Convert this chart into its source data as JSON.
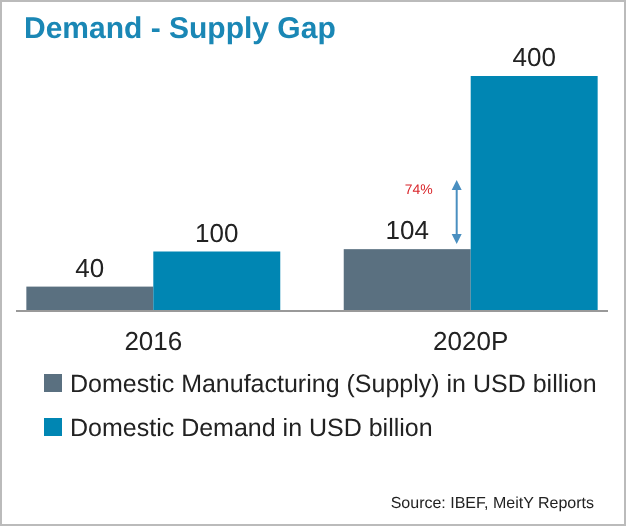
{
  "chart_data": {
    "type": "bar",
    "title": "Demand - Supply Gap",
    "categories": [
      "2016",
      "2020P"
    ],
    "series": [
      {
        "name": "Domestic Manufacturing (Supply) in USD billion",
        "color": "#5a7080",
        "values": [
          40,
          104
        ]
      },
      {
        "name": "Domestic Demand in USD billion",
        "color": "#0086b3",
        "values": [
          100,
          400
        ]
      }
    ],
    "data_labels": true,
    "legend": "bottom left",
    "tick_labels": "x",
    "annotations": [
      "74%",
      "Source: IBEF, MeitY Reports"
    ]
  }
}
